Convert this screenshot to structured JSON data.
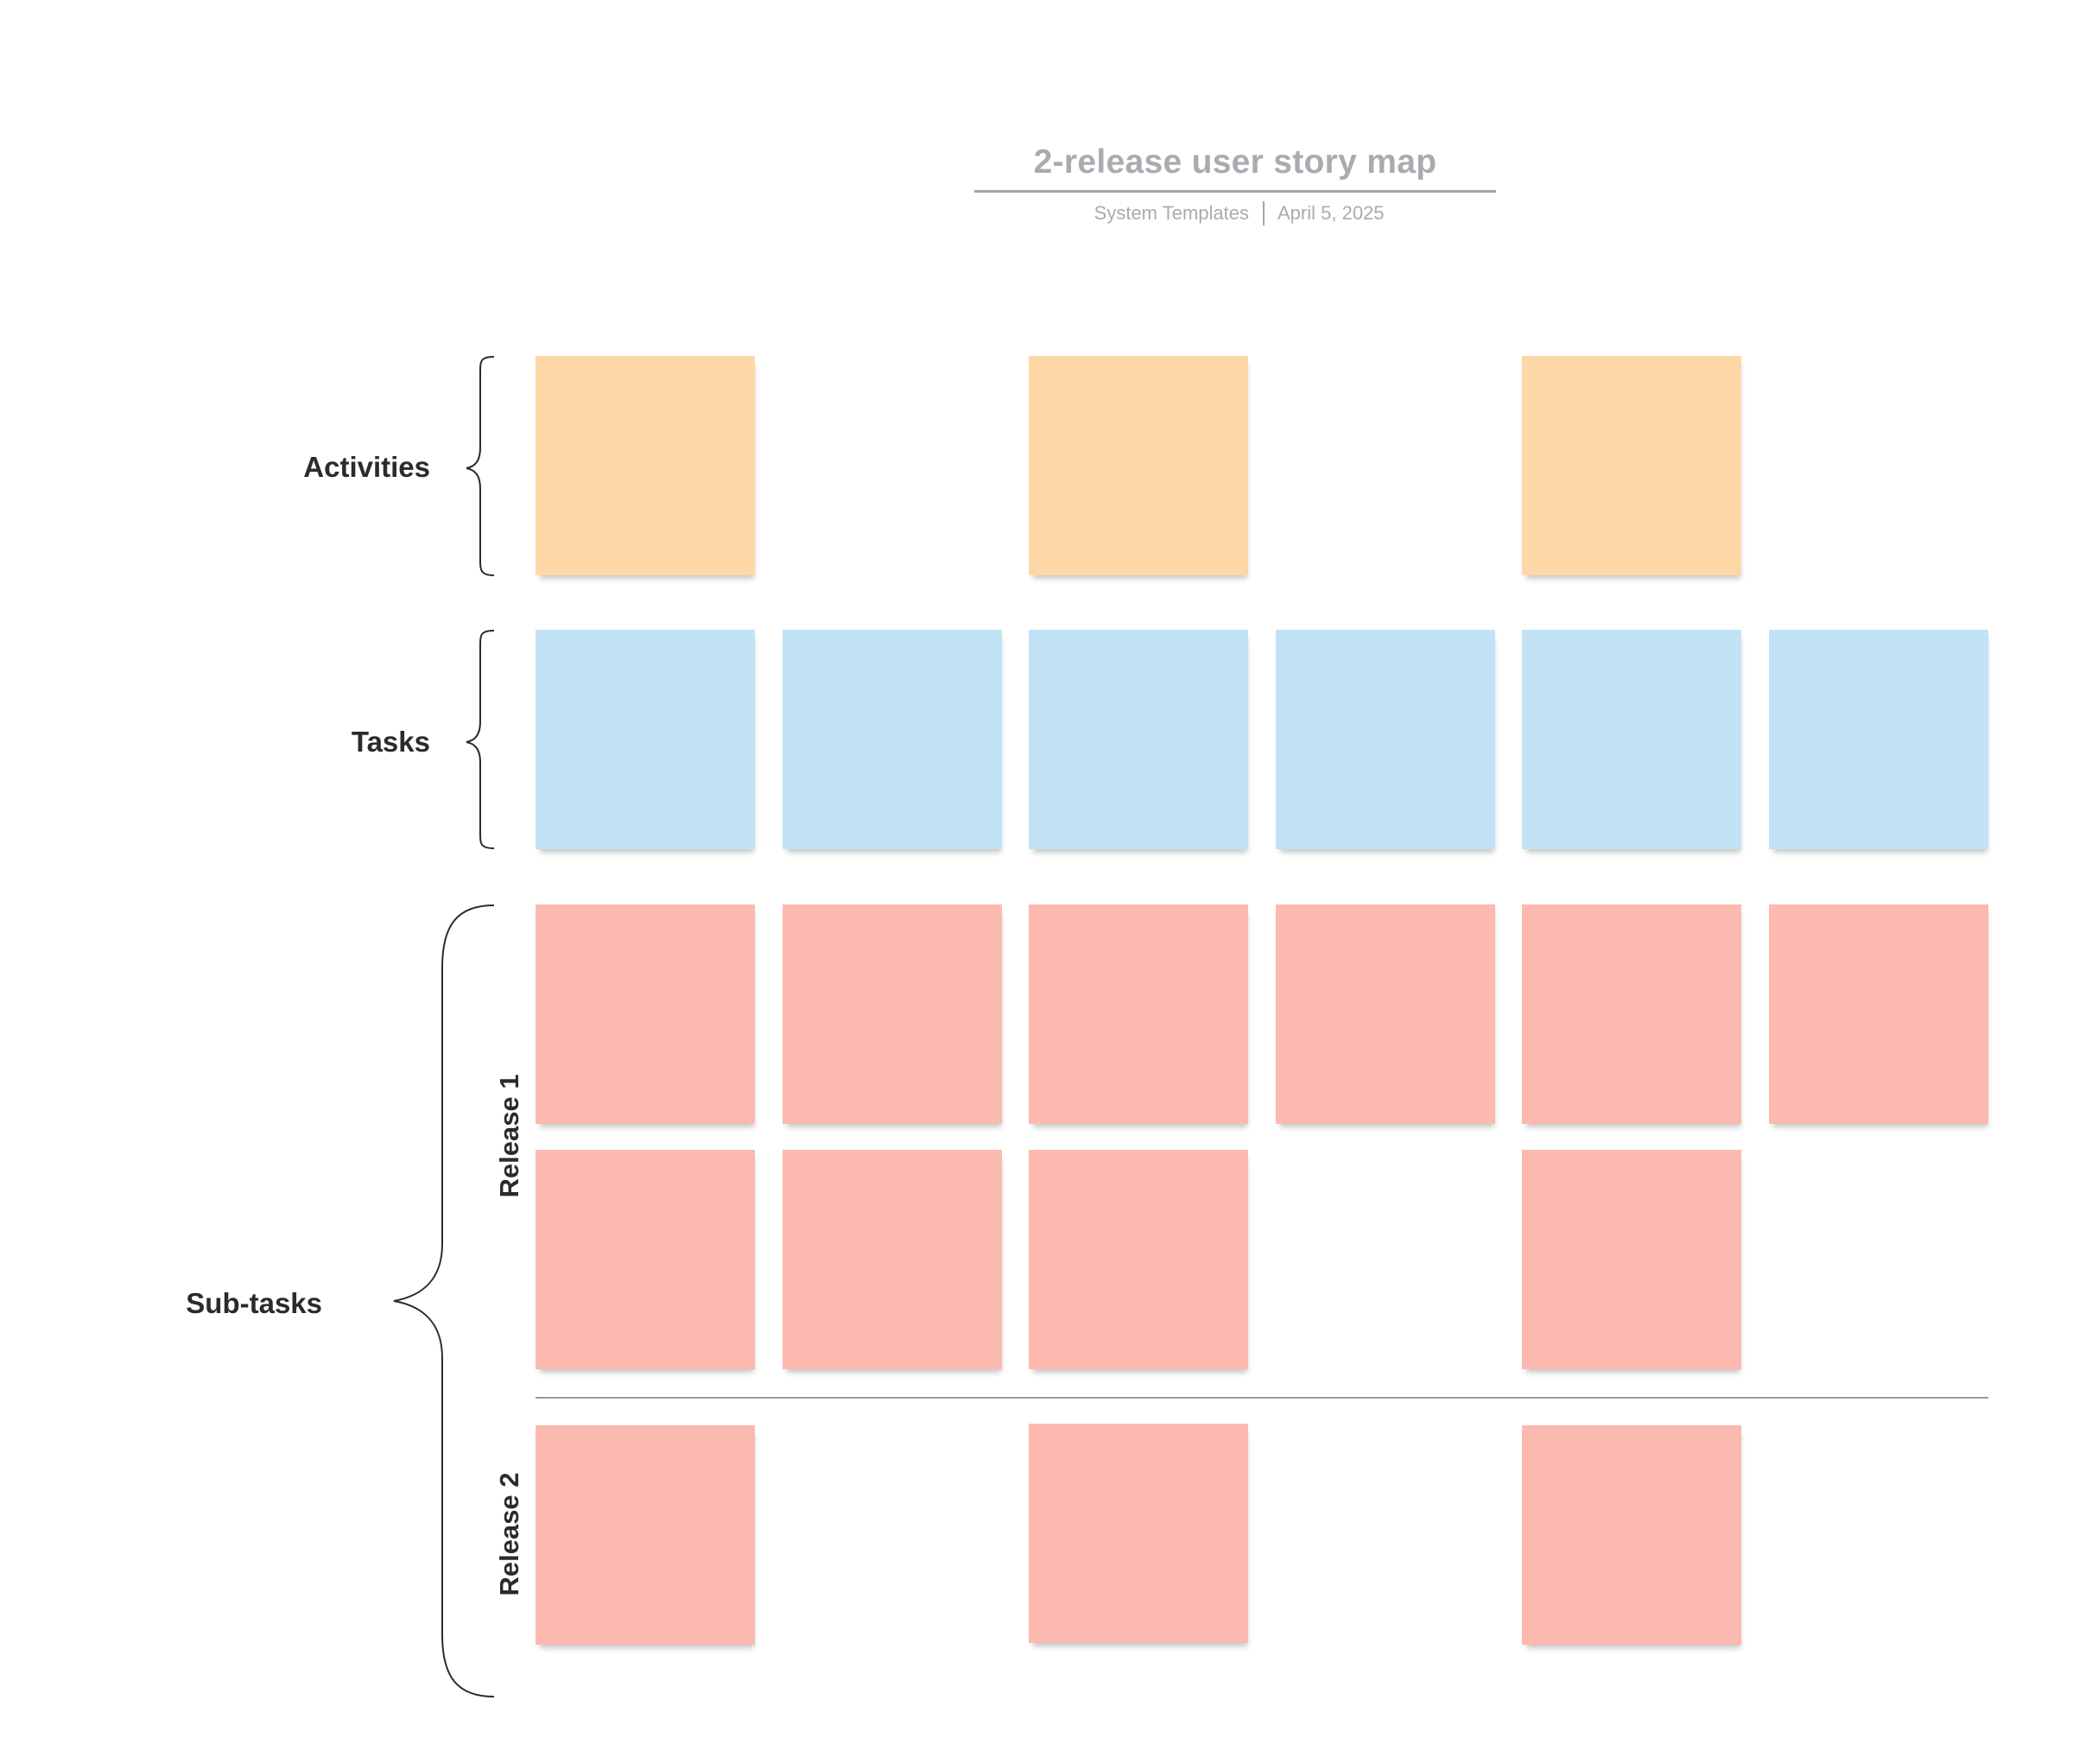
{
  "header": {
    "title": "2-release user story map",
    "source": "System Templates",
    "date": "April 5, 2025"
  },
  "rows": {
    "activities": {
      "label": "Activities"
    },
    "tasks": {
      "label": "Tasks"
    },
    "subtasks": {
      "label": "Sub-tasks",
      "releases": [
        {
          "label": "Release 1"
        },
        {
          "label": "Release 2"
        }
      ]
    }
  },
  "colors": {
    "activity_note": "#fdd8a6",
    "task_note": "#c1e3f5",
    "subtask_note": "#fbb9b0",
    "title_text": "#a9abb0",
    "label_text": "#2b2b2b"
  }
}
